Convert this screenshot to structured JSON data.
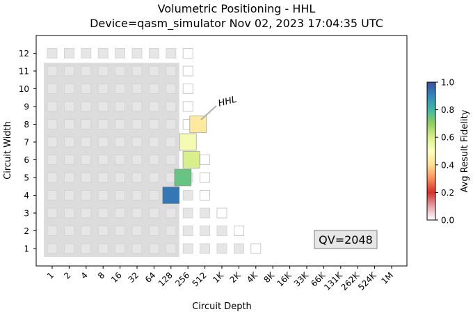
{
  "chart_data": {
    "type": "heatmap",
    "title": "Volumetric Positioning - HHL",
    "subtitle": "Device=qasm_simulator  Nov 02, 2023 17:04:35 UTC",
    "xlabel": "Circuit Depth",
    "ylabel": "Circuit Width",
    "x_tick_labels": [
      "1",
      "2",
      "4",
      "8",
      "16",
      "32",
      "64",
      "128",
      "256",
      "512",
      "1K",
      "2K",
      "4K",
      "8K",
      "16K",
      "33K",
      "66K",
      "131K",
      "262K",
      "524K",
      "1M"
    ],
    "y_ticks": [
      1,
      2,
      3,
      4,
      5,
      6,
      7,
      8,
      9,
      10,
      11,
      12
    ],
    "qv_label": "QV=2048",
    "annotation": "HHL",
    "colorbar": {
      "label": "Avg Result Fidelity",
      "range": [
        0.0,
        1.0
      ],
      "ticks": [
        "0.0",
        "0.2",
        "0.4",
        "0.6",
        "0.8",
        "1.0"
      ],
      "colormap": "RdYlBu-like (red low, blue high)"
    },
    "grid": false,
    "legend": "none",
    "data_points": [
      {
        "width": 4,
        "depth_log2": 7.0,
        "fidelity": 0.93
      },
      {
        "width": 5,
        "depth_log2": 7.7,
        "fidelity": 0.75
      },
      {
        "width": 6,
        "depth_log2": 8.2,
        "fidelity": 0.6
      },
      {
        "width": 7,
        "depth_log2": 8.0,
        "fidelity": 0.53
      },
      {
        "width": 8,
        "depth_log2": 8.6,
        "fidelity": 0.43
      }
    ],
    "qv_region": {
      "max_width": 11,
      "max_depth_log2": 7
    },
    "background_cells": [
      {
        "width": 1,
        "filled_depth_log2": [
          0,
          1,
          2,
          3,
          4,
          5,
          6,
          7,
          8,
          9,
          10,
          11
        ],
        "outlined_depth_log2": [
          12
        ]
      },
      {
        "width": 2,
        "filled_depth_log2": [
          0,
          1,
          2,
          3,
          4,
          5,
          6,
          7,
          8,
          9,
          10
        ],
        "outlined_depth_log2": [
          11
        ]
      },
      {
        "width": 3,
        "filled_depth_log2": [
          0,
          1,
          2,
          3,
          4,
          5,
          6,
          7,
          8,
          9
        ],
        "outlined_depth_log2": [
          10
        ]
      },
      {
        "width": 4,
        "filled_depth_log2": [
          0,
          1,
          2,
          3,
          4,
          5,
          6,
          7,
          8
        ],
        "outlined_depth_log2": [
          9
        ]
      },
      {
        "width": 5,
        "filled_depth_log2": [
          0,
          1,
          2,
          3,
          4,
          5,
          6,
          7,
          8
        ],
        "outlined_depth_log2": [
          9
        ]
      },
      {
        "width": 6,
        "filled_depth_log2": [
          0,
          1,
          2,
          3,
          4,
          5,
          6,
          7,
          8
        ],
        "outlined_depth_log2": [
          9
        ]
      },
      {
        "width": 7,
        "filled_depth_log2": [
          0,
          1,
          2,
          3,
          4,
          5,
          6,
          7
        ],
        "outlined_depth_log2": [
          8
        ]
      },
      {
        "width": 8,
        "filled_depth_log2": [
          0,
          1,
          2,
          3,
          4,
          5,
          6,
          7
        ],
        "outlined_depth_log2": [
          8
        ]
      },
      {
        "width": 9,
        "filled_depth_log2": [
          0,
          1,
          2,
          3,
          4,
          5,
          6,
          7
        ],
        "outlined_depth_log2": [
          8
        ]
      },
      {
        "width": 10,
        "filled_depth_log2": [
          0,
          1,
          2,
          3,
          4,
          5,
          6,
          7
        ],
        "outlined_depth_log2": [
          8
        ]
      },
      {
        "width": 11,
        "filled_depth_log2": [
          0,
          1,
          2,
          3,
          4,
          5,
          6,
          7
        ],
        "outlined_depth_log2": [
          8
        ]
      },
      {
        "width": 12,
        "filled_depth_log2": [
          0,
          1,
          2,
          3,
          4,
          5,
          6,
          7
        ],
        "outlined_depth_log2": [
          8
        ]
      }
    ]
  }
}
